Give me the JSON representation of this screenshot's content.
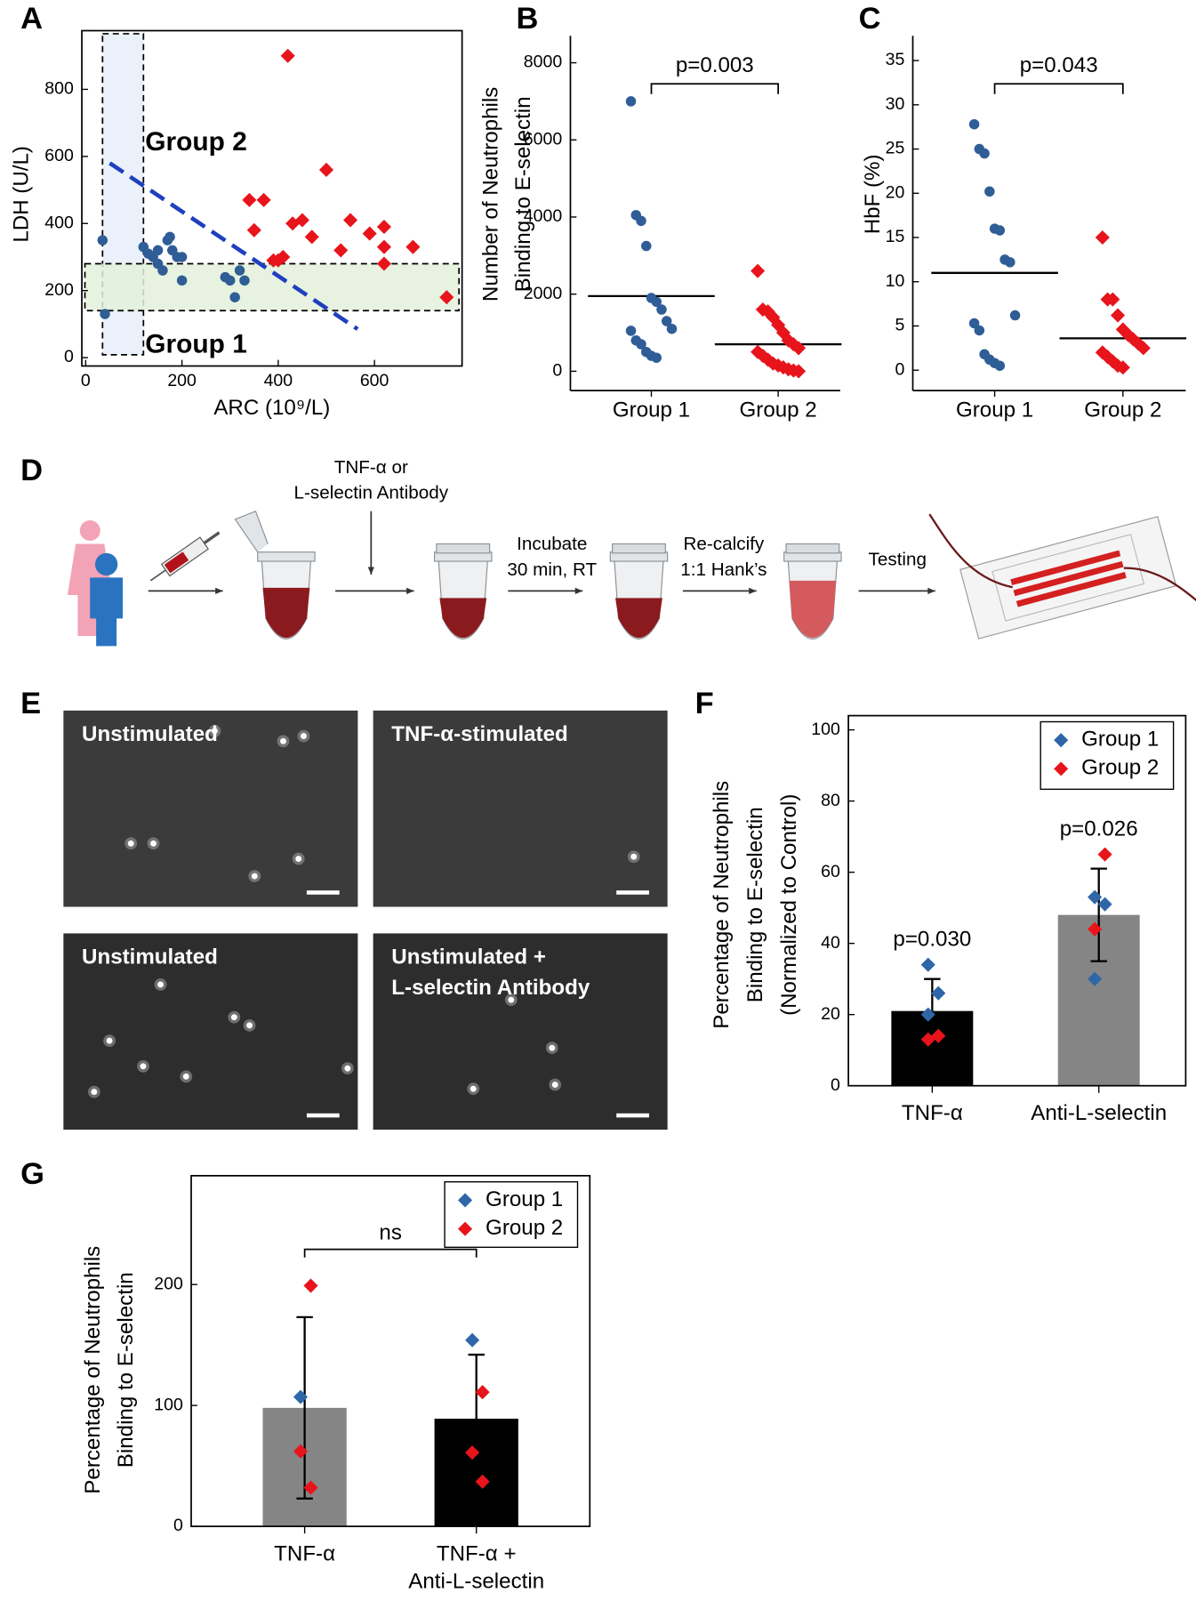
{
  "chart_data": [
    {
      "type": "scatter",
      "label": "A",
      "xlabel": "ARC (10⁹/L)",
      "ylabel": "LDH (U/L)",
      "xlim": [
        -8,
        782
      ],
      "ylim": [
        -25,
        975
      ],
      "xticks": [
        0,
        200,
        400,
        600
      ],
      "yticks": [
        0,
        200,
        400,
        600,
        800
      ],
      "series": [
        {
          "name": "Group 1",
          "color": "#2f5d96",
          "marker": "circle",
          "x": [
            40,
            35,
            120,
            130,
            140,
            150,
            170,
            175,
            160,
            190,
            200,
            200,
            290,
            300,
            310,
            320,
            330,
            150,
            180
          ],
          "y": [
            130,
            350,
            330,
            310,
            300,
            320,
            350,
            360,
            260,
            300,
            300,
            230,
            240,
            230,
            180,
            260,
            230,
            280,
            320
          ]
        },
        {
          "name": "Group 2",
          "color": "#e8141b",
          "marker": "diamond",
          "x": [
            420,
            500,
            340,
            370,
            350,
            390,
            400,
            410,
            430,
            450,
            470,
            550,
            530,
            590,
            620,
            620,
            620,
            680,
            750
          ],
          "y": [
            900,
            560,
            470,
            470,
            380,
            290,
            290,
            300,
            400,
            410,
            360,
            410,
            320,
            370,
            390,
            330,
            280,
            330,
            180
          ]
        }
      ],
      "fit_line": {
        "x": [
          50,
          565
        ],
        "y": [
          580,
          85
        ],
        "color": "#1f3fbf"
      },
      "bands": [
        {
          "axis": "x",
          "range": [
            35,
            120
          ],
          "color": "#eaf1fa"
        },
        {
          "axis": "y",
          "range": [
            140,
            280
          ],
          "color": "#e3f1da"
        }
      ]
    },
    {
      "type": "strip",
      "label": "B",
      "ylabel": [
        "Number of Neutrophils",
        "Binding to E-selectin"
      ],
      "categories": [
        "Group 1",
        "Group 2"
      ],
      "ylim": [
        -500,
        8700
      ],
      "yticks": [
        0,
        2000,
        4000,
        6000,
        8000
      ],
      "series": [
        {
          "color": "#2f5d96",
          "marker": "circle",
          "values": [
            7000,
            4050,
            3900,
            3250,
            1900,
            1800,
            1600,
            1300,
            1100,
            1050,
            800,
            700,
            500,
            400,
            350
          ],
          "center": 1950
        },
        {
          "color": "#e8141b",
          "marker": "diamond",
          "values": [
            2600,
            1600,
            1550,
            1400,
            1200,
            1000,
            800,
            700,
            600,
            500,
            400,
            300,
            200,
            150,
            100,
            50,
            20,
            0
          ],
          "center": 700
        }
      ],
      "comparison": "p=0.003"
    },
    {
      "type": "strip",
      "label": "C",
      "ylabel": [
        "HbF (%)"
      ],
      "categories": [
        "Group 1",
        "Group 2"
      ],
      "ylim": [
        -2.3,
        37.8
      ],
      "yticks": [
        0,
        5,
        10,
        15,
        20,
        25,
        30,
        35
      ],
      "series": [
        {
          "color": "#2f5d96",
          "marker": "circle",
          "values": [
            27.8,
            25,
            24.5,
            20.2,
            16,
            15.8,
            12.5,
            12.2,
            6.2,
            5.3,
            4.5,
            1.8,
            1.2,
            0.8,
            0.5
          ],
          "center": 11
        },
        {
          "color": "#e8141b",
          "marker": "diamond",
          "values": [
            15,
            8,
            8,
            6.2,
            4.6,
            4,
            3.5,
            3,
            2.5,
            2,
            1.5,
            1,
            0.5,
            0.3
          ],
          "center": 3.6
        }
      ],
      "comparison": "p=0.043"
    },
    {
      "type": "bar",
      "label": "F",
      "ylabel": [
        "Percentage of Neutrophils",
        "Binding to E-selectin",
        "(Normalized to Control)"
      ],
      "categories": [
        [
          "TNF-α"
        ],
        [
          "Anti-L-selectin"
        ]
      ],
      "values": [
        21,
        48
      ],
      "errors": [
        9,
        13
      ],
      "bar_colors": [
        "#000000",
        "#858585"
      ],
      "ylim": [
        0,
        104
      ],
      "yticks": [
        0,
        20,
        40,
        60,
        80,
        100
      ],
      "legend": "top-right",
      "series": [
        {
          "name": "Group 1",
          "color": "#2e66a8",
          "marker": "diamond",
          "values": [
            [
              34,
              26,
              20
            ],
            [
              53,
              51,
              30
            ]
          ]
        },
        {
          "name": "Group 2",
          "color": "#e8141b",
          "marker": "diamond",
          "values": [
            [
              14,
              13
            ],
            [
              65,
              44
            ]
          ]
        }
      ],
      "annotations": [
        "p=0.030",
        "p=0.026"
      ]
    },
    {
      "type": "bar",
      "label": "G",
      "ylabel": [
        "Percentage of Neutrophils",
        "Binding to E-selectin"
      ],
      "categories": [
        [
          "TNF-α"
        ],
        [
          "TNF-α +",
          "Anti-L-selectin"
        ]
      ],
      "values": [
        98,
        89
      ],
      "errors": [
        75,
        53
      ],
      "bar_colors": [
        "#858585",
        "#000000"
      ],
      "ylim": [
        0,
        290
      ],
      "yticks": [
        0,
        100,
        200
      ],
      "legend": "top-right",
      "series": [
        {
          "name": "Group 1",
          "color": "#2e66a8",
          "marker": "diamond",
          "values": [
            [
              107
            ],
            [
              154
            ]
          ]
        },
        {
          "name": "Group 2",
          "color": "#e8141b",
          "marker": "diamond",
          "values": [
            [
              199,
              62,
              32
            ],
            [
              111,
              61,
              37
            ]
          ]
        }
      ],
      "comparison": "ns"
    }
  ],
  "diagram": {
    "label": "D",
    "treatment": [
      "TNF-α or",
      "L-selectin Antibody"
    ],
    "incubate": [
      "Incubate",
      "30 min, RT"
    ],
    "recalcify": [
      "Re-calcify",
      "1:1 Hank’s"
    ],
    "testing": "Testing"
  },
  "micrographs": {
    "label": "E",
    "images": [
      [
        "Unstimulated"
      ],
      [
        "TNF-α-stimulated"
      ],
      [
        "Unstimulated"
      ],
      [
        "Unstimulated +",
        "L-selectin Antibody"
      ]
    ]
  }
}
